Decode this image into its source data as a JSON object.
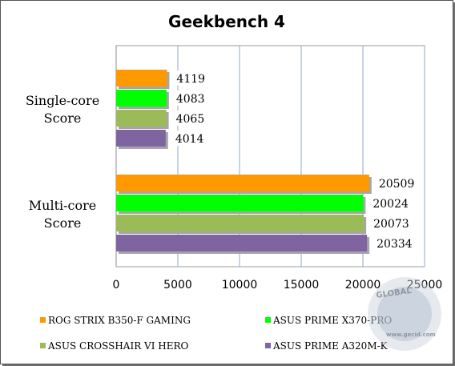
{
  "chart_data": {
    "type": "bar",
    "orientation": "horizontal",
    "title": "Geekbench 4",
    "categories": [
      "Single-core Score",
      "Multi-core Score"
    ],
    "category_lines": [
      [
        "Single-core",
        "Score"
      ],
      [
        "Multi-core",
        "Score"
      ]
    ],
    "series": [
      {
        "name": "ROG STRIX B350-F GAMING",
        "color": "#ff9900",
        "values": [
          4119,
          20509
        ]
      },
      {
        "name": "ASUS PRIME X370-PRO",
        "color": "#00ff00",
        "values": [
          4083,
          20024
        ]
      },
      {
        "name": "ASUS CROSSHAIR VI HERO",
        "color": "#9bbb59",
        "values": [
          4065,
          20073
        ]
      },
      {
        "name": "ASUS PRIME A320M-K",
        "color": "#8064a2",
        "values": [
          4014,
          20334
        ]
      }
    ],
    "xlim": [
      0,
      25000
    ],
    "xticks": [
      0,
      5000,
      10000,
      15000,
      20000,
      25000
    ],
    "grid": true,
    "legend_position": "bottom"
  },
  "watermark": {
    "text": "GLOBAL",
    "url": "www.gecid.com"
  }
}
